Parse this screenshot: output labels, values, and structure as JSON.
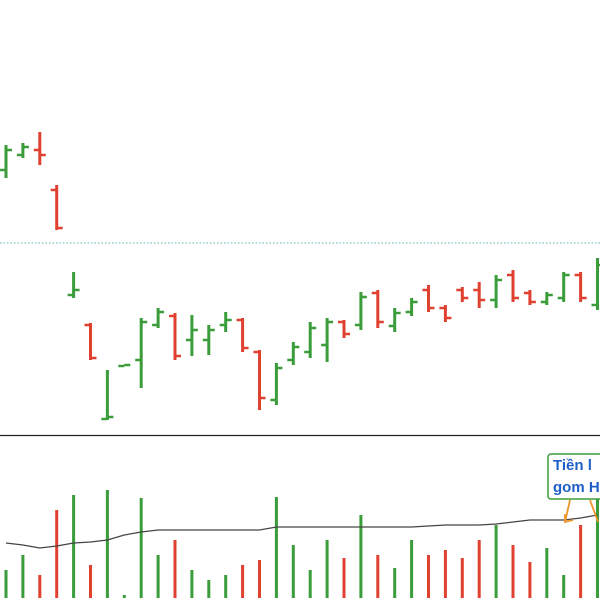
{
  "chart_data": {
    "type": "ohlc",
    "up_color": "#3a9d3a",
    "down_color": "#e0402f",
    "ylim": [
      0,
      435
    ],
    "ref_line": 192,
    "ref_color": "#5bb5b0",
    "open": [
      265,
      280,
      285,
      245,
      140,
      110,
      16,
      69,
      75,
      110,
      119,
      95,
      95,
      110,
      115,
      83,
      35,
      75,
      83,
      90,
      113,
      110,
      142,
      109,
      123,
      145,
      127,
      145,
      145,
      135,
      160,
      142,
      133,
      137,
      160,
      130
    ],
    "high": [
      290,
      292,
      303,
      250,
      163,
      112,
      65,
      70,
      117,
      127,
      122,
      120,
      110,
      123,
      117,
      85,
      72,
      93,
      113,
      117,
      115,
      143,
      145,
      127,
      137,
      150,
      130,
      148,
      153,
      160,
      165,
      145,
      143,
      163,
      163,
      177
    ],
    "low": [
      257,
      277,
      270,
      205,
      137,
      75,
      15,
      69,
      47,
      107,
      75,
      79,
      80,
      103,
      83,
      25,
      30,
      70,
      77,
      73,
      97,
      105,
      107,
      103,
      119,
      123,
      113,
      133,
      127,
      127,
      133,
      130,
      130,
      133,
      133,
      125
    ],
    "close": [
      285,
      288,
      280,
      207,
      145,
      77,
      18,
      70,
      113,
      123,
      79,
      105,
      105,
      115,
      87,
      37,
      67,
      88,
      107,
      113,
      101,
      138,
      113,
      122,
      133,
      127,
      117,
      137,
      135,
      155,
      137,
      133,
      140,
      160,
      137,
      170
    ],
    "volume": {
      "values": [
        28,
        43,
        23,
        88,
        103,
        33,
        108,
        3,
        100,
        43,
        58,
        28,
        18,
        23,
        33,
        38,
        101,
        53,
        28,
        58,
        40,
        83,
        43,
        30,
        58,
        43,
        48,
        40,
        58,
        73,
        53,
        36,
        50,
        23,
        73,
        138
      ],
      "ylim": [
        0,
        163
      ],
      "ma": [
        55,
        53,
        50,
        52,
        55,
        56,
        58,
        63,
        66,
        68,
        68,
        68,
        68,
        68,
        68,
        68,
        71,
        71,
        71,
        71,
        71,
        71,
        71,
        71,
        71,
        72,
        73,
        73,
        73,
        74,
        76,
        78,
        78,
        78,
        80,
        83
      ],
      "ma_color": "#444444"
    },
    "annotation": {
      "lines": [
        "Tiền l",
        "gom H"
      ],
      "text_color": "#1f5fc8",
      "border_color": "#3a9d3a",
      "arrow_color": "#f0962a"
    }
  }
}
